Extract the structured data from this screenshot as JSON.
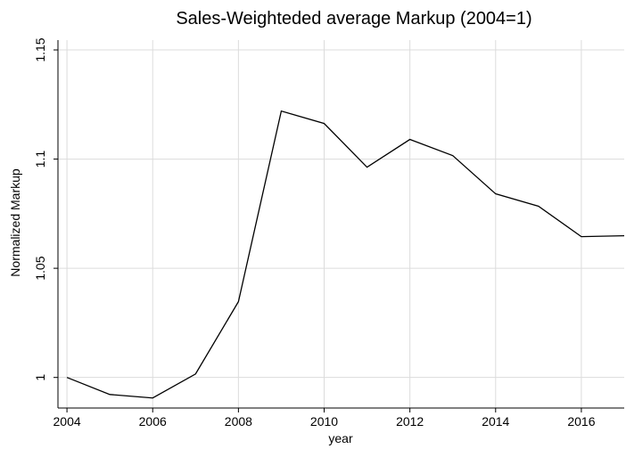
{
  "chart_data": {
    "type": "line",
    "title": "Sales-Weighteded average Markup (2004=1)",
    "x_label": "year",
    "y_label": "Normalized Markup",
    "x": [
      2004,
      2005,
      2006,
      2007,
      2008,
      2009,
      2010,
      2011,
      2012,
      2013,
      2014,
      2015,
      2016,
      2017
    ],
    "series": [
      {
        "color": "#000000",
        "values": [
          1.0,
          0.9922,
          0.9906,
          1.0016,
          1.0347,
          1.122,
          1.1163,
          1.0963,
          1.109,
          1.1016,
          1.0841,
          1.0784,
          1.0645,
          1.0649
        ]
      }
    ],
    "xlim": [
      2003.79,
      2017
    ],
    "xticks": [
      2004,
      2006,
      2008,
      2010,
      2012,
      2014,
      2016
    ],
    "ylim": [
      0.986,
      1.1545
    ],
    "yticks": [
      1,
      1.05,
      1.1,
      1.15
    ],
    "grid": true
  }
}
